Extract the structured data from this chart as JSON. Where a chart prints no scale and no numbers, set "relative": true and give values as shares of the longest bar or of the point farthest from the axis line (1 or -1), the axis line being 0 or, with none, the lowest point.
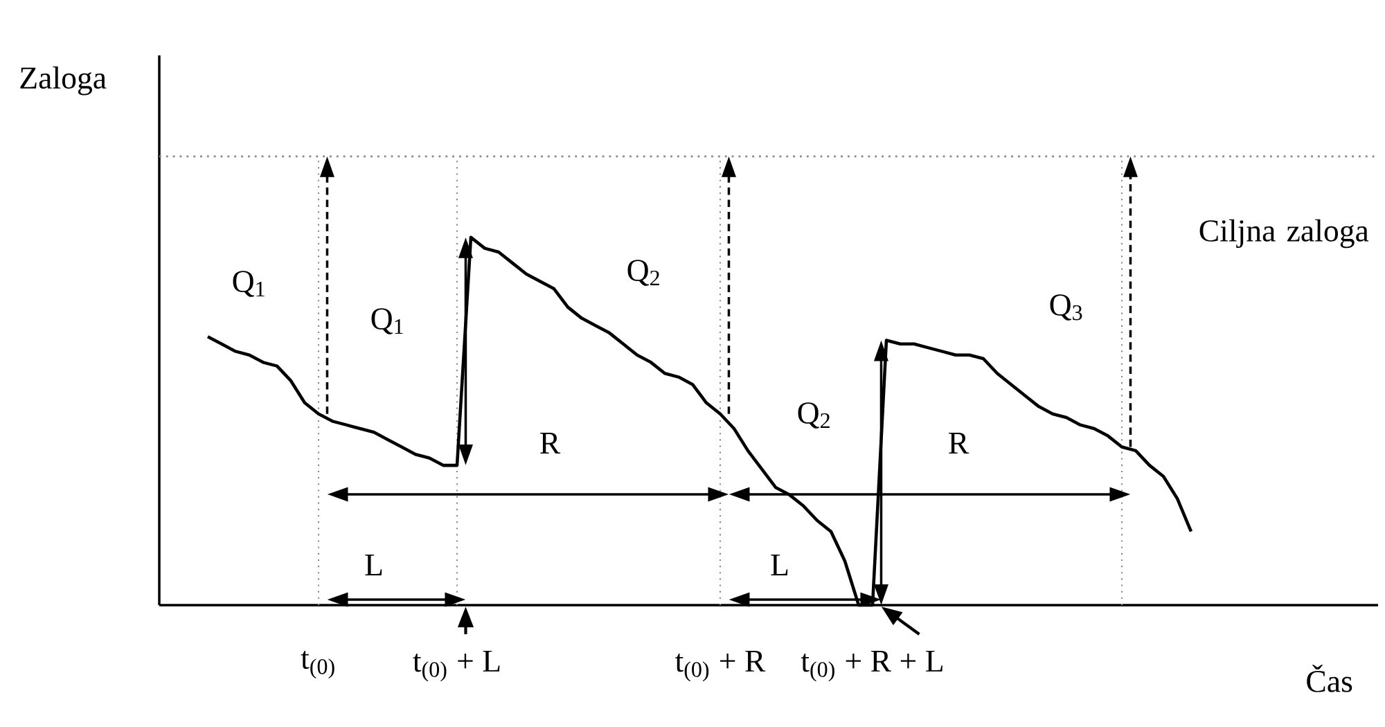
{
  "chart_data": {
    "type": "line",
    "relative": true,
    "color": "#000000",
    "marker": "none",
    "line_style": "solid",
    "grid": "x",
    "xlabel": "Čas",
    "ylabel": "Zaloga",
    "categories": [
      null,
      null,
      null,
      null,
      null,
      null,
      null,
      null,
      null,
      null,
      null,
      "t$_{(0)}$",
      null,
      null,
      null,
      null,
      null,
      null,
      null,
      null,
      null,
      "t$_{(0)}$ +  L",
      null,
      null,
      null,
      null,
      null,
      null,
      null,
      null,
      null,
      null,
      null,
      null,
      null,
      null,
      null,
      null,
      null,
      null,
      "t$_{(0)}$ + R",
      null,
      null,
      null,
      null,
      null,
      null,
      null,
      null,
      null,
      null,
      "t$_{(0)}$ + R +  L",
      null,
      null,
      null,
      null,
      null,
      null,
      null,
      null,
      null,
      null,
      null,
      null,
      null,
      null,
      null,
      null,
      null,
      null,
      null,
      null,
      null,
      null,
      null,
      null,
      null,
      null,
      null,
      null,
      null,
      null,
      null,
      null,
      null,
      null,
      null,
      null
    ],
    "values": [
      null,
      null,
      null,
      0.73,
      0.71,
      0.69,
      0.68,
      0.66,
      0.65,
      0.61,
      0.55,
      0.52,
      0.5,
      0.49,
      0.48,
      0.47,
      0.45,
      0.43,
      0.41,
      0.4,
      0.38,
      0.38,
      1,
      0.97,
      0.96,
      0.93,
      0.9,
      0.88,
      0.86,
      0.81,
      0.78,
      0.76,
      0.74,
      0.71,
      0.68,
      0.66,
      0.63,
      0.62,
      0.6,
      0.55,
      0.52,
      0.48,
      0.42,
      0.37,
      0.32,
      0.3,
      0.27,
      0.23,
      0.2,
      0.12,
      0,
      0,
      0.72,
      0.71,
      0.71,
      0.7,
      0.69,
      0.68,
      0.68,
      0.67,
      0.63,
      0.6,
      0.57,
      0.54,
      0.52,
      0.51,
      0.49,
      0.48,
      0.46,
      0.43,
      0.42,
      0.38,
      0.35,
      0.29,
      0.2,
      null,
      null,
      null,
      null,
      null,
      null,
      null,
      null,
      null,
      null,
      null,
      null,
      null
    ],
    "ref_lines": [
      {
        "axis": "y",
        "value": 1.22,
        "label": "Ciljna zaloga",
        "line_style": "dotted",
        "color": "#888888"
      }
    ],
    "annotations": [
      "Q$_{1}$",
      "Q$_{1}$",
      "Q$_{2}$",
      "Q$_{2}$",
      "Q$_{3}$",
      "R",
      "R",
      "L",
      "L"
    ]
  }
}
